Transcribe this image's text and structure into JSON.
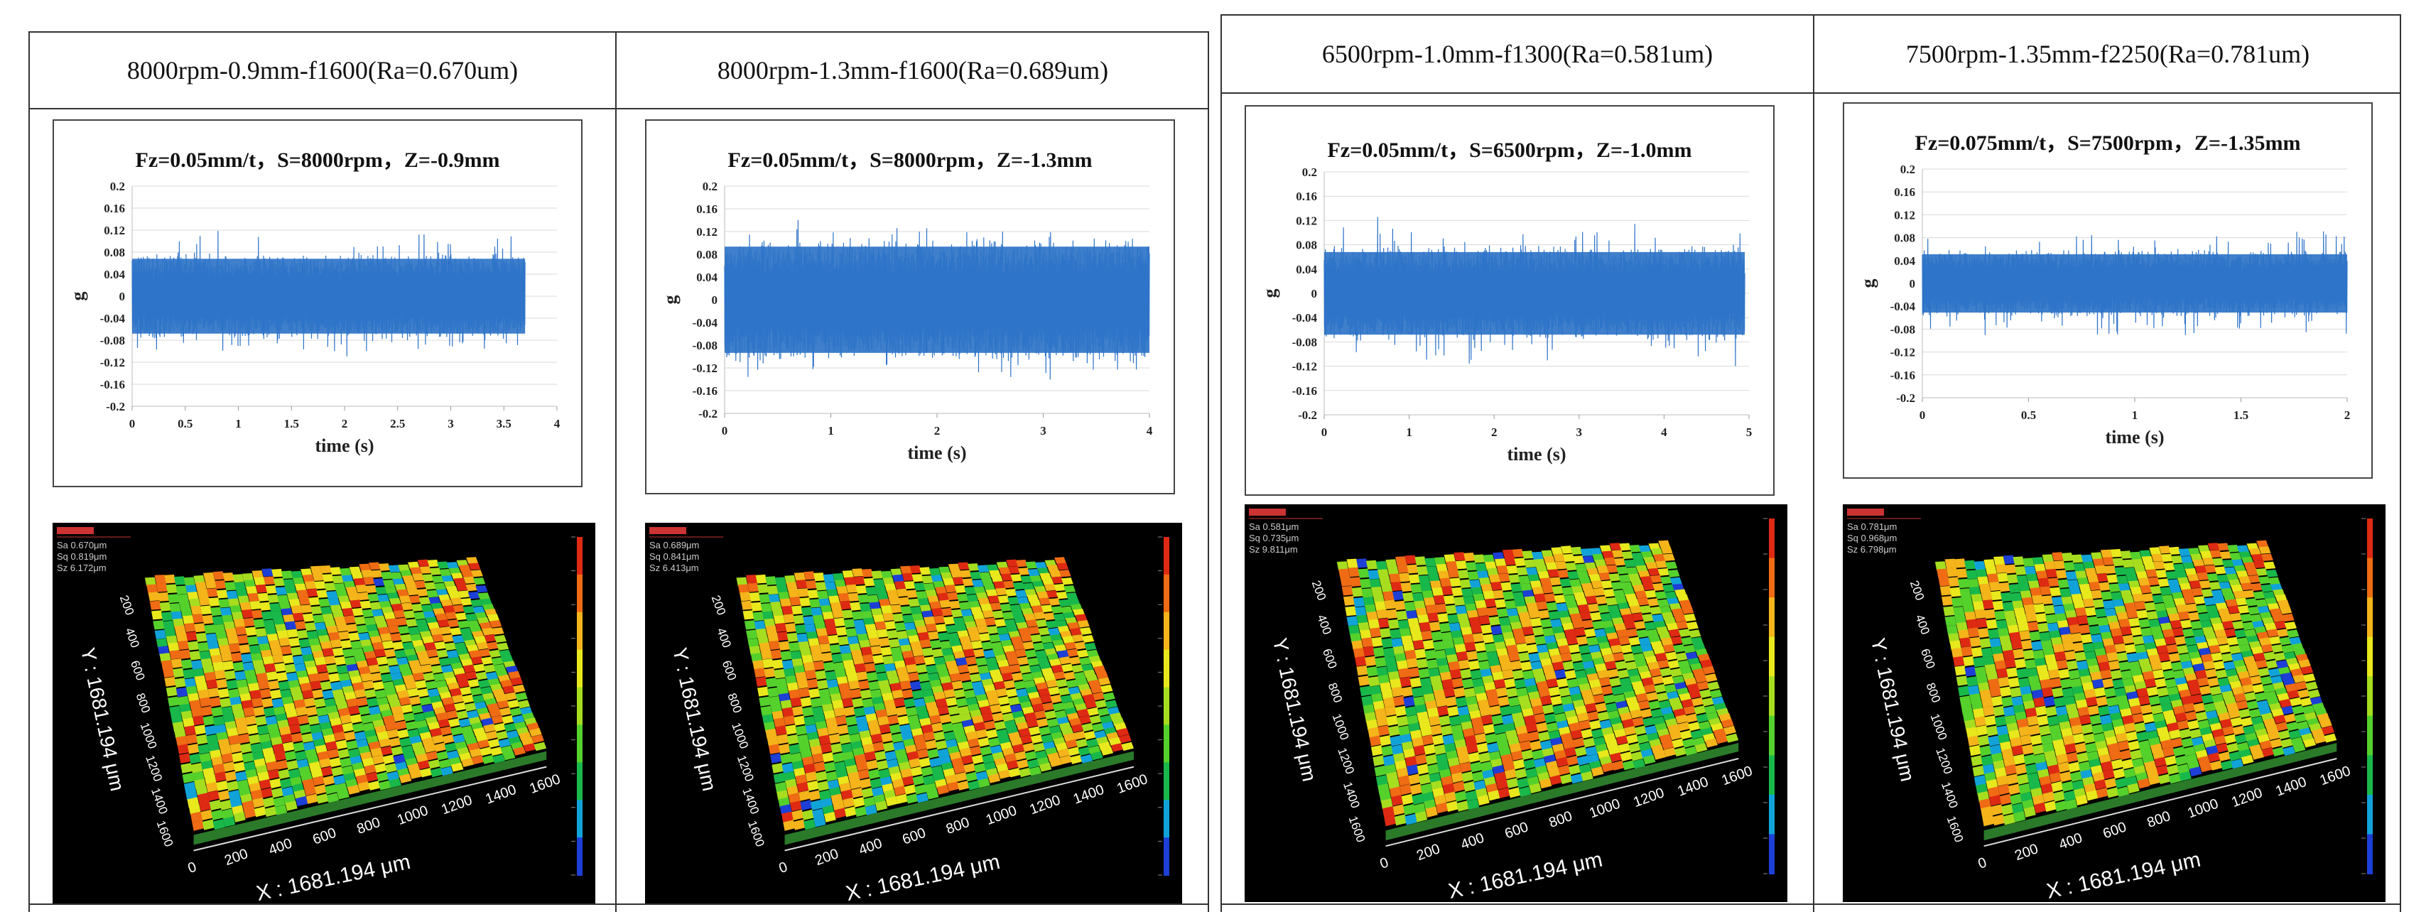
{
  "tables": [
    {
      "panels": [
        {
          "header": "8000rpm-0.9mm-f1600(Ra=0.670um)",
          "chart_data": {
            "type": "line",
            "title": "Fz=0.05mm/t，S=8000rpm，Z=-0.9mm",
            "xlabel": "time (s)",
            "ylabel": "g",
            "xlim": [
              0,
              4
            ],
            "ylim": [
              -0.2,
              0.2
            ],
            "xticks": [
              0,
              0.5,
              1,
              1.5,
              2,
              2.5,
              3,
              3.5,
              4
            ],
            "xtick_labels": [
              "0",
              "0.5",
              "1",
              "1.5",
              "2",
              "2.5",
              "3",
              "3.5",
              "4"
            ],
            "yticks": [
              0.2,
              0.16,
              0.12,
              0.08,
              0.04,
              0,
              -0.04,
              -0.08,
              -0.12,
              -0.16,
              -0.2
            ],
            "ytick_labels": [
              "0.2",
              "0.16",
              "0.12",
              "0.08",
              "0.04",
              "0",
              "-0.04",
              "-0.08",
              "-0.12",
              "-0.16",
              "-0.2"
            ],
            "signal_duration": 3.7,
            "signal_amplitude": 0.08,
            "signal_peak": 0.12,
            "color": "#2f74c8"
          },
          "surface": {
            "sa": "Sa 0.670μm",
            "sq": "Sq 0.819μm",
            "sz": "Sz 6.172μm",
            "x_label": "X : 1681.194 μm",
            "y_label": "Y : 1681.194 μm",
            "x_ticks": [
              "0",
              "200",
              "400",
              "600",
              "800",
              "1000",
              "1200",
              "1400",
              "1600"
            ],
            "y_ticks": [
              "200",
              "400",
              "600",
              "800",
              "1000",
              "1200",
              "1400",
              "1600"
            ]
          }
        },
        {
          "header": "8000rpm-1.3mm-f1600(Ra=0.689um)",
          "chart_data": {
            "type": "line",
            "title": "Fz=0.05mm/t，S=8000rpm，Z=-1.3mm",
            "xlabel": "time (s)",
            "ylabel": "g",
            "xlim": [
              0,
              4
            ],
            "ylim": [
              -0.2,
              0.2
            ],
            "xticks": [
              0,
              1,
              2,
              3,
              4
            ],
            "xtick_labels": [
              "0",
              "1",
              "2",
              "3",
              "4"
            ],
            "yticks": [
              0.2,
              0.16,
              0.12,
              0.08,
              0.04,
              0,
              -0.04,
              -0.08,
              -0.12,
              -0.16,
              -0.2
            ],
            "ytick_labels": [
              "0.2",
              "0.16",
              "0.12",
              "0.08",
              "0.04",
              "0",
              "-0.04",
              "-0.08",
              "-0.12",
              "-0.16",
              "-0.2"
            ],
            "signal_duration": 4.0,
            "signal_amplitude": 0.11,
            "signal_peak": 0.15,
            "color": "#2f74c8"
          },
          "surface": {
            "sa": "Sa 0.689μm",
            "sq": "Sq 0.841μm",
            "sz": "Sz 6.413μm",
            "x_label": "X : 1681.194 μm",
            "y_label": "Y : 1681.194 μm",
            "x_ticks": [
              "0",
              "200",
              "400",
              "600",
              "800",
              "1000",
              "1200",
              "1400",
              "1600"
            ],
            "y_ticks": [
              "200",
              "400",
              "600",
              "800",
              "1000",
              "1200",
              "1400",
              "1600"
            ]
          }
        }
      ]
    },
    {
      "panels": [
        {
          "header": "6500rpm-1.0mm-f1300(Ra=0.581um)",
          "chart_data": {
            "type": "line",
            "title": "Fz=0.05mm/t，S=6500rpm，Z=-1.0mm",
            "xlabel": "time (s)",
            "ylabel": "g",
            "xlim": [
              0,
              5
            ],
            "ylim": [
              -0.2,
              0.2
            ],
            "xticks": [
              0,
              1,
              2,
              3,
              4,
              5
            ],
            "xtick_labels": [
              "0",
              "1",
              "2",
              "3",
              "4",
              "5"
            ],
            "yticks": [
              0.2,
              0.16,
              0.12,
              0.08,
              0.04,
              0,
              -0.04,
              -0.08,
              -0.12,
              -0.16,
              -0.2
            ],
            "ytick_labels": [
              "0.2",
              "0.16",
              "0.12",
              "0.08",
              "0.04",
              "0",
              "-0.04",
              "-0.08",
              "-0.12",
              "-0.16",
              "-0.2"
            ],
            "signal_duration": 4.95,
            "signal_amplitude": 0.08,
            "signal_peak": 0.13,
            "color": "#2f74c8"
          },
          "surface": {
            "sa": "Sa 0.581μm",
            "sq": "Sq 0.735μm",
            "sz": "Sz 9.811μm",
            "x_label": "X : 1681.194 μm",
            "y_label": "Y : 1681.194 μm",
            "x_ticks": [
              "0",
              "200",
              "400",
              "600",
              "800",
              "1000",
              "1200",
              "1400",
              "1600"
            ],
            "y_ticks": [
              "200",
              "400",
              "600",
              "800",
              "1000",
              "1200",
              "1400",
              "1600"
            ]
          }
        },
        {
          "header": "7500rpm-1.35mm-f2250(Ra=0.781um)",
          "chart_data": {
            "type": "line",
            "title": "Fz=0.075mm/t，S=7500rpm，Z=-1.35mm",
            "xlabel": "time (s)",
            "ylabel": "g",
            "xlim": [
              0,
              2
            ],
            "ylim": [
              -0.2,
              0.2
            ],
            "xticks": [
              0,
              0.5,
              1,
              1.5,
              2
            ],
            "xtick_labels": [
              "0",
              "0.5",
              "1",
              "1.5",
              "2"
            ],
            "yticks": [
              0.2,
              0.16,
              0.12,
              0.08,
              0.04,
              0,
              -0.04,
              -0.08,
              -0.12,
              -0.16,
              -0.2
            ],
            "ytick_labels": [
              "0.2",
              "0.16",
              "0.12",
              "0.08",
              "0.04",
              "0",
              "-0.04",
              "-0.08",
              "-0.12",
              "-0.16",
              "-0.2"
            ],
            "signal_duration": 2.0,
            "signal_amplitude": 0.06,
            "signal_peak": 0.1,
            "color": "#2f74c8"
          },
          "surface": {
            "sa": "Sa 0.781μm",
            "sq": "Sq 0.968μm",
            "sz": "Sz 6.798μm",
            "x_label": "X : 1681.194 μm",
            "y_label": "Y : 1681.194 μm",
            "x_ticks": [
              "0",
              "200",
              "400",
              "600",
              "800",
              "1000",
              "1200",
              "1400",
              "1600"
            ],
            "y_ticks": [
              "200",
              "400",
              "600",
              "800",
              "1000",
              "1200",
              "1400",
              "1600"
            ]
          }
        }
      ]
    }
  ]
}
